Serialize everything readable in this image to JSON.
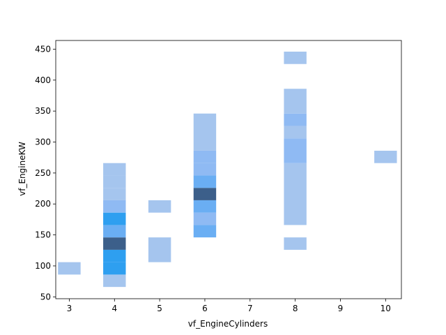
{
  "chart_data": {
    "type": "heatmap",
    "title": "",
    "xlabel": "vf_EngineCylinders",
    "ylabel": "vf_EngineKW",
    "xlim": [
      2.7,
      10.35
    ],
    "ylim": [
      47,
      464
    ],
    "xticks": [
      3,
      4,
      5,
      6,
      7,
      8,
      9,
      10
    ],
    "yticks": [
      50,
      100,
      150,
      200,
      250,
      300,
      350,
      400,
      450
    ],
    "bin_width_x": 0.5,
    "bin_height_y": 20,
    "grid": false,
    "colors": {
      "low": "#a5c5ee",
      "mid_low": "#8fbaf3",
      "mid": "#6aaef3",
      "high": "#2e9ff0",
      "peak": "#3c5f8a",
      "frame": "#000000",
      "background": "#ffffff"
    },
    "cells": [
      {
        "x": 3,
        "y0": 86,
        "y1": 106,
        "level": "low"
      },
      {
        "x": 4,
        "y0": 66,
        "y1": 86,
        "level": "low"
      },
      {
        "x": 4,
        "y0": 86,
        "y1": 106,
        "level": "high"
      },
      {
        "x": 4,
        "y0": 106,
        "y1": 126,
        "level": "high"
      },
      {
        "x": 4,
        "y0": 126,
        "y1": 146,
        "level": "peak"
      },
      {
        "x": 4,
        "y0": 146,
        "y1": 166,
        "level": "mid"
      },
      {
        "x": 4,
        "y0": 166,
        "y1": 186,
        "level": "high"
      },
      {
        "x": 4,
        "y0": 186,
        "y1": 206,
        "level": "mid_low"
      },
      {
        "x": 4,
        "y0": 206,
        "y1": 226,
        "level": "low"
      },
      {
        "x": 4,
        "y0": 226,
        "y1": 246,
        "level": "low"
      },
      {
        "x": 4,
        "y0": 246,
        "y1": 266,
        "level": "low"
      },
      {
        "x": 5,
        "y0": 106,
        "y1": 146,
        "level": "low"
      },
      {
        "x": 5,
        "y0": 186,
        "y1": 206,
        "level": "low"
      },
      {
        "x": 6,
        "y0": 146,
        "y1": 166,
        "level": "mid"
      },
      {
        "x": 6,
        "y0": 166,
        "y1": 186,
        "level": "mid_low"
      },
      {
        "x": 6,
        "y0": 186,
        "y1": 206,
        "level": "mid"
      },
      {
        "x": 6,
        "y0": 206,
        "y1": 226,
        "level": "peak"
      },
      {
        "x": 6,
        "y0": 226,
        "y1": 246,
        "level": "mid"
      },
      {
        "x": 6,
        "y0": 246,
        "y1": 266,
        "level": "mid_low"
      },
      {
        "x": 6,
        "y0": 266,
        "y1": 286,
        "level": "mid_low"
      },
      {
        "x": 6,
        "y0": 286,
        "y1": 346,
        "level": "low"
      },
      {
        "x": 8,
        "y0": 126,
        "y1": 146,
        "level": "low"
      },
      {
        "x": 8,
        "y0": 166,
        "y1": 266,
        "level": "low"
      },
      {
        "x": 8,
        "y0": 266,
        "y1": 306,
        "level": "mid_low"
      },
      {
        "x": 8,
        "y0": 306,
        "y1": 326,
        "level": "low"
      },
      {
        "x": 8,
        "y0": 326,
        "y1": 346,
        "level": "mid_low"
      },
      {
        "x": 8,
        "y0": 346,
        "y1": 386,
        "level": "low"
      },
      {
        "x": 8,
        "y0": 426,
        "y1": 446,
        "level": "low"
      },
      {
        "x": 10,
        "y0": 266,
        "y1": 286,
        "level": "low"
      }
    ]
  }
}
